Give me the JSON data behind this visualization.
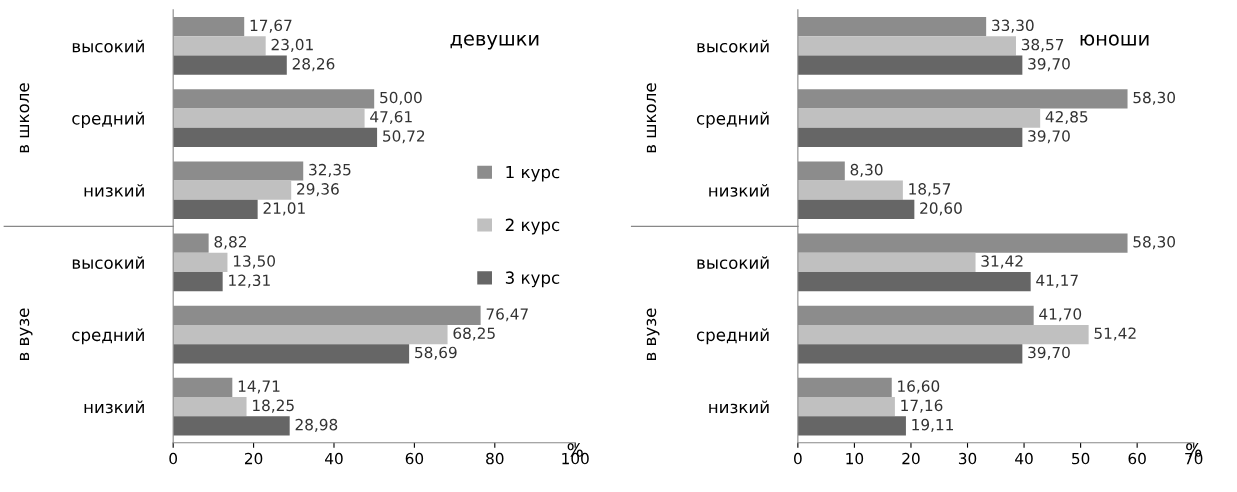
{
  "chart_data": [
    {
      "type": "bar",
      "orientation": "horizontal",
      "title": "девушки",
      "xlabel": "%",
      "categories": [
        "высокий",
        "средний",
        "низкий",
        "высокий",
        "средний",
        "низкий"
      ],
      "annotations": [
        "в школе",
        "в вузе"
      ],
      "xlim": [
        0,
        100
      ],
      "xticks": [
        0,
        20,
        40,
        60,
        80,
        100
      ],
      "legend": "right",
      "grid": false,
      "series": [
        {
          "name": "1 курс",
          "color": "#8c8c8c",
          "values": [
            17.67,
            50.0,
            32.35,
            8.82,
            76.47,
            14.71
          ],
          "value_labels": [
            "17,67",
            "50,00",
            "32,35",
            "8,82",
            "76,47",
            "14,71"
          ]
        },
        {
          "name": "2 курс",
          "color": "#c0c0c0",
          "values": [
            23.01,
            47.61,
            29.36,
            13.5,
            68.25,
            18.25
          ],
          "value_labels": [
            "23,01",
            "47,61",
            "29,36",
            "13,50",
            "68,25",
            "18,25"
          ]
        },
        {
          "name": "3 курс",
          "color": "#666666",
          "values": [
            28.26,
            50.72,
            21.01,
            12.31,
            58.69,
            28.98
          ],
          "value_labels": [
            "28,26",
            "50,72",
            "21,01",
            "12,31",
            "58,69",
            "28,98"
          ]
        }
      ]
    },
    {
      "type": "bar",
      "orientation": "horizontal",
      "title": "юноши",
      "xlabel": "%",
      "categories": [
        "высокий",
        "средний",
        "низкий",
        "высокий",
        "средний",
        "низкий"
      ],
      "annotations": [
        "в школе",
        "в вузе"
      ],
      "xlim": [
        0,
        70
      ],
      "xticks": [
        0,
        10,
        20,
        30,
        40,
        50,
        60,
        70
      ],
      "grid": false,
      "series": [
        {
          "color": "#8c8c8c",
          "values": [
            33.3,
            58.3,
            8.3,
            58.3,
            41.7,
            16.6
          ],
          "value_labels": [
            "33,30",
            "58,30",
            "8,30",
            "58,30",
            "41,70",
            "16,60"
          ]
        },
        {
          "color": "#c0c0c0",
          "values": [
            38.57,
            42.85,
            18.57,
            31.42,
            51.42,
            17.16
          ],
          "value_labels": [
            "38,57",
            "42,85",
            "18,57",
            "31,42",
            "51,42",
            "17,16"
          ]
        },
        {
          "color": "#666666",
          "values": [
            39.7,
            39.7,
            20.6,
            41.17,
            39.7,
            19.11
          ],
          "value_labels": [
            "39,70",
            "39,70",
            "20,60",
            "41,17",
            "39,70",
            "19,11"
          ]
        }
      ]
    }
  ]
}
